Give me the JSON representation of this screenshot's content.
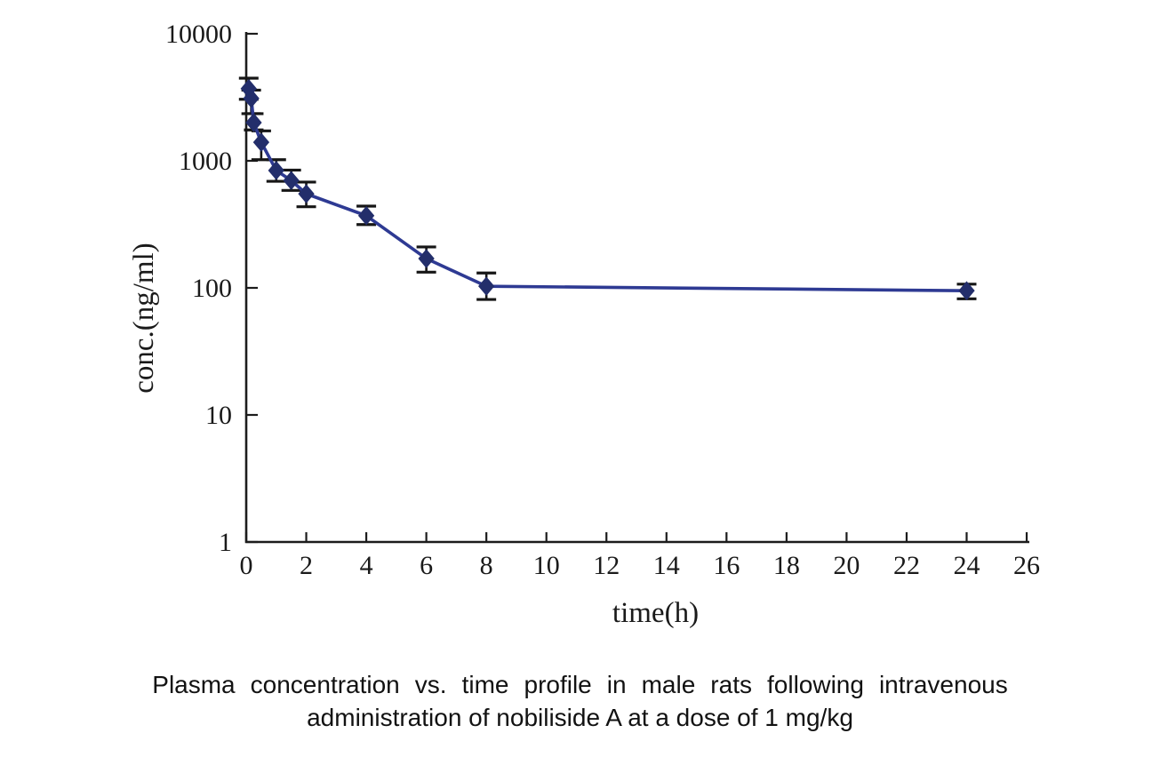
{
  "figure": {
    "caption_line1": "Plasma concentration vs. time profile in male rats following intravenous",
    "caption_line2": "administration of nobiliside A at a dose of 1 mg/kg"
  },
  "chart_data": {
    "type": "line",
    "title": "",
    "xlabel": "time(h)",
    "ylabel": "conc.(ng/ml)",
    "x_scale": "linear",
    "y_scale": "log",
    "xlim": [
      0,
      26
    ],
    "ylim": [
      1,
      10000
    ],
    "x_ticks": [
      0,
      2,
      4,
      6,
      8,
      10,
      12,
      14,
      16,
      18,
      20,
      22,
      24,
      26
    ],
    "y_ticks": [
      1,
      10,
      100,
      1000,
      10000
    ],
    "grid": false,
    "legend_position": "none",
    "marker": "filled-diamond",
    "error_bars": true,
    "colors": {
      "line": "#2e3a93",
      "marker": "#232e6b",
      "error_bar": "#161616",
      "axis": "#1c1c1c",
      "text": "#1a1a1a"
    },
    "series": [
      {
        "name": "plasma concentration after 1 mg/kg IV nobiliside A",
        "x": [
          0.083,
          0.167,
          0.25,
          0.5,
          1,
          1.5,
          2,
          4,
          6,
          8,
          24
        ],
        "y": [
          3700,
          3100,
          2000,
          1400,
          840,
          700,
          550,
          370,
          170,
          103,
          95
        ],
        "y_err_high": [
          4470,
          3600,
          2350,
          1720,
          1020,
          845,
          680,
          440,
          210,
          131,
          107
        ],
        "y_err_low": [
          3050,
          2350,
          1750,
          1020,
          690,
          585,
          435,
          315,
          133,
          81,
          82
        ]
      }
    ]
  }
}
